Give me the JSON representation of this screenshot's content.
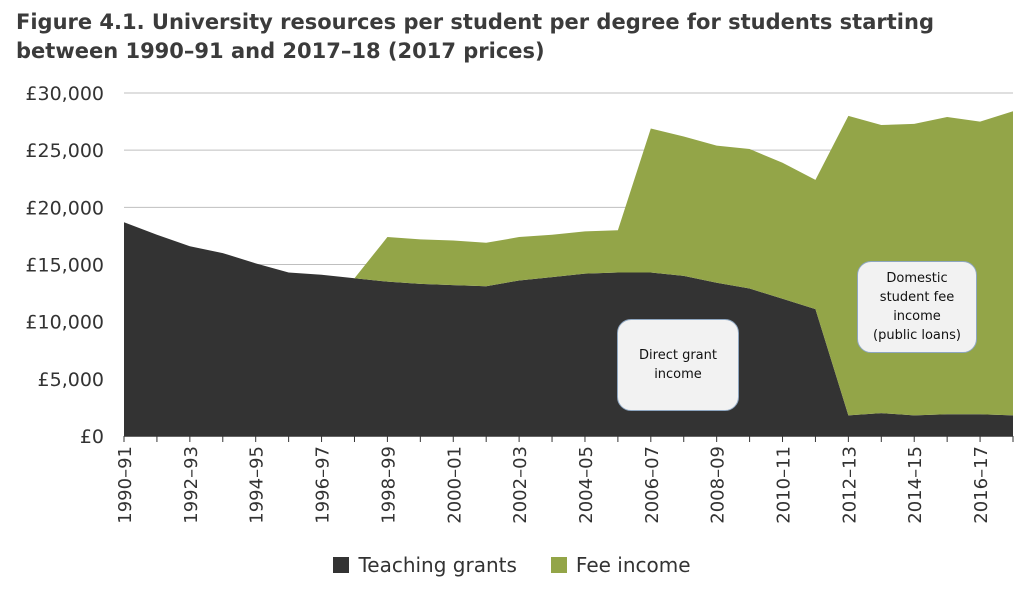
{
  "chart_data": {
    "type": "area",
    "stacked": true,
    "title": "Figure 4.1. University resources per student per degree for students starting between 1990–91 and 2017–18 (2017 prices)",
    "xlabel": "",
    "ylabel": "",
    "ylim": [
      0,
      30000
    ],
    "yticks": [
      0,
      5000,
      10000,
      15000,
      20000,
      25000,
      30000
    ],
    "ytick_labels": [
      "£0",
      "£5,000",
      "£10,000",
      "£15,000",
      "£20,000",
      "£25,000",
      "£30,000"
    ],
    "categories": [
      "1990–91",
      "1991–92",
      "1992–93",
      "1993–94",
      "1994–95",
      "1995–96",
      "1996–97",
      "1997–98",
      "1998–99",
      "1999–00",
      "2000–01",
      "2001–02",
      "2002–03",
      "2003–04",
      "2004–05",
      "2005–06",
      "2006–07",
      "2007–08",
      "2008–09",
      "2009–10",
      "2010–11",
      "2011–12",
      "2012–13",
      "2013–14",
      "2014–15",
      "2015–16",
      "2016–17",
      "2017–18"
    ],
    "xtick_labels": [
      "1990–91",
      "1992–93",
      "1994–95",
      "1996–97",
      "1998–99",
      "2000–01",
      "2002–03",
      "2004–05",
      "2006–07",
      "2008–09",
      "2010–11",
      "2012–13",
      "2014–15",
      "2016–17"
    ],
    "grid": "horizontal",
    "legend_position": "bottom",
    "series": [
      {
        "name": "Teaching grants",
        "color": "#333333",
        "values": [
          18700,
          17600,
          16600,
          16000,
          15100,
          14300,
          14100,
          13800,
          13500,
          13300,
          13200,
          13100,
          13600,
          13900,
          14200,
          14300,
          14300,
          14000,
          13400,
          12900,
          12000,
          11100,
          1800,
          2000,
          1800,
          1900,
          1900,
          1800
        ]
      },
      {
        "name": "Fee income",
        "color": "#93a548",
        "values": [
          0,
          0,
          0,
          0,
          0,
          0,
          0,
          0,
          3900,
          3900,
          3900,
          3800,
          3800,
          3700,
          3700,
          3700,
          12600,
          12200,
          12000,
          12200,
          11900,
          11300,
          26200,
          25200,
          25500,
          26000,
          25600,
          26600
        ]
      }
    ],
    "annotations": [
      {
        "id": "direct",
        "text": "Direct grant\nincome"
      },
      {
        "id": "fee",
        "text": "Domestic\nstudent fee\nincome\n(public loans)"
      }
    ]
  }
}
